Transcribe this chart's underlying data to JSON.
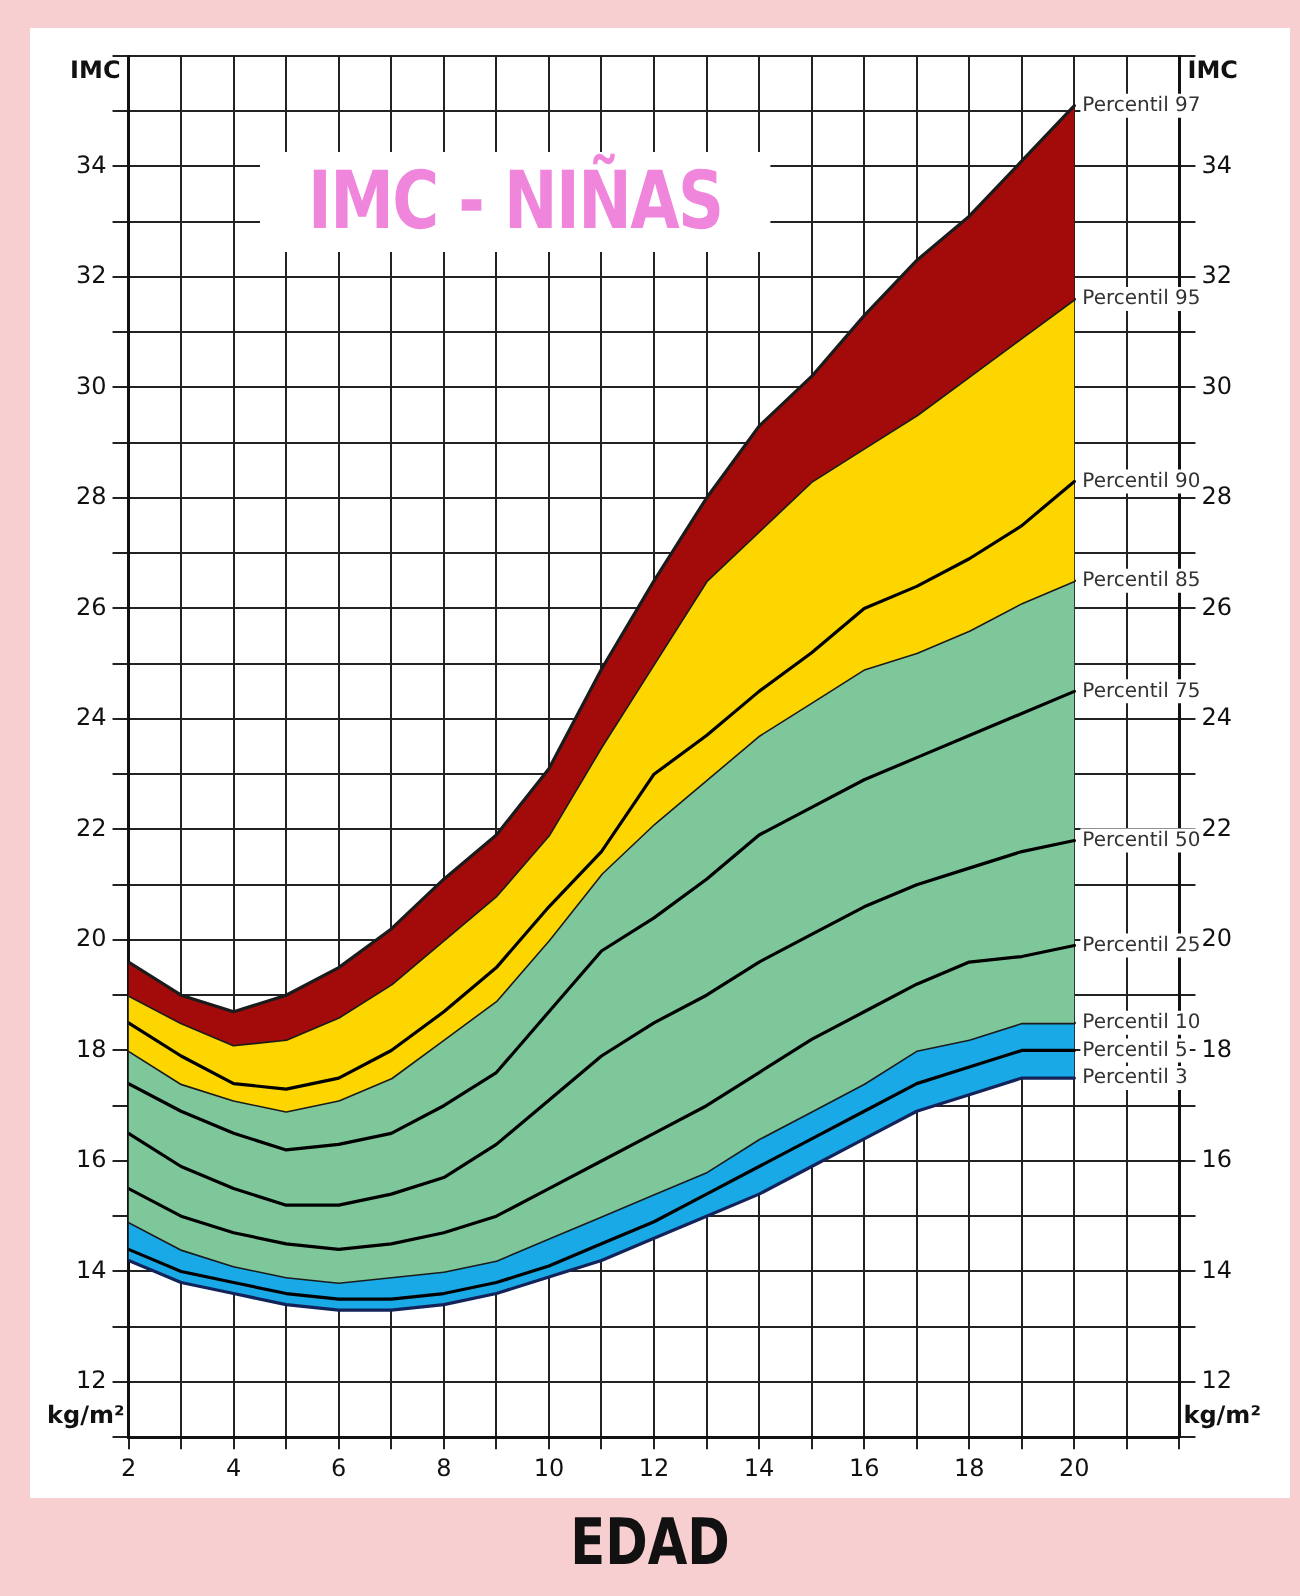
{
  "chart_data": {
    "type": "line",
    "title": "IMC - NIÑAS",
    "xlabel": "EDAD",
    "ylabel": "IMC",
    "y2label": "IMC",
    "annotations": [
      "kg/m²",
      "kg/m²"
    ],
    "x": [
      2,
      3,
      4,
      5,
      6,
      7,
      8,
      9,
      10,
      11,
      12,
      13,
      14,
      15,
      16,
      17,
      18,
      19,
      20
    ],
    "xlim": [
      2,
      22
    ],
    "xticks": [
      2,
      {
        "value": 3,
        "label": null
      },
      4,
      {
        "value": 5,
        "label": null
      },
      6,
      {
        "value": 7,
        "label": null
      },
      8,
      {
        "value": 9,
        "label": null
      },
      10,
      {
        "value": 11,
        "label": null
      },
      12,
      {
        "value": 13,
        "label": null
      },
      14,
      {
        "value": 15,
        "label": null
      },
      16,
      {
        "value": 17,
        "label": null
      },
      18,
      {
        "value": 19,
        "label": null
      },
      20,
      {
        "value": 21,
        "label": null
      },
      {
        "value": 22,
        "label": null
      }
    ],
    "ylim": [
      11,
      36
    ],
    "yticks": [
      {
        "value": 11,
        "label": null
      },
      12,
      {
        "value": 13,
        "label": null
      },
      14,
      {
        "value": 15,
        "label": null
      },
      16,
      {
        "value": 17,
        "label": null
      },
      18,
      {
        "value": 19,
        "label": null
      },
      20,
      {
        "value": 21,
        "label": null
      },
      22,
      {
        "value": 23,
        "label": null
      },
      24,
      {
        "value": 25,
        "label": null
      },
      26,
      {
        "value": 27,
        "label": null
      },
      28,
      {
        "value": 29,
        "label": null
      },
      30,
      {
        "value": 31,
        "label": null
      },
      32,
      {
        "value": 33,
        "label": null
      },
      34,
      {
        "value": 35,
        "label": null
      },
      {
        "value": 36,
        "label": null
      }
    ],
    "y2lim": [
      11,
      36
    ],
    "y2ticks": [
      {
        "value": 11,
        "label": null
      },
      12,
      {
        "value": 13,
        "label": null
      },
      14,
      {
        "value": 15,
        "label": null
      },
      16,
      {
        "value": 17,
        "label": null
      },
      18,
      {
        "value": 19,
        "label": null
      },
      20,
      {
        "value": 21,
        "label": null
      },
      22,
      {
        "value": 23,
        "label": null
      },
      24,
      {
        "value": 25,
        "label": null
      },
      26,
      {
        "value": 27,
        "label": null
      },
      28,
      {
        "value": 29,
        "label": null
      },
      30,
      {
        "value": 31,
        "label": null
      },
      32,
      {
        "value": 33,
        "label": null
      },
      34,
      {
        "value": 35,
        "label": null
      },
      {
        "value": 36,
        "label": null
      }
    ],
    "grid": true,
    "legend": false,
    "marker": "none",
    "line_style": "solid",
    "series": [
      {
        "name": "Percentil 97",
        "type": "area",
        "color": "#a30a0a",
        "values": [
          19.6,
          19.0,
          18.7,
          19.0,
          19.5,
          20.2,
          21.1,
          21.9,
          23.1,
          24.9,
          26.5,
          28.0,
          29.3,
          30.2,
          31.3,
          32.3,
          33.1,
          34.1,
          35.1
        ]
      },
      {
        "name": "Percentil 95",
        "type": "area",
        "color": "#fdd600",
        "values": [
          19.0,
          18.5,
          18.1,
          18.2,
          18.6,
          19.2,
          20.0,
          20.8,
          21.9,
          23.5,
          25.0,
          26.5,
          27.4,
          28.3,
          28.9,
          29.5,
          30.2,
          30.9,
          31.6
        ]
      },
      {
        "name": "Percentil 90",
        "color": "#000000",
        "values": [
          18.5,
          17.9,
          17.4,
          17.3,
          17.5,
          18.0,
          18.7,
          19.5,
          20.6,
          21.6,
          23.0,
          23.7,
          24.5,
          25.2,
          26.0,
          26.4,
          26.9,
          27.5,
          28.3
        ]
      },
      {
        "name": "Percentil 85",
        "type": "area",
        "color": "#7ec79b",
        "values": [
          18.0,
          17.4,
          17.1,
          16.9,
          17.1,
          17.5,
          18.2,
          18.9,
          20.0,
          21.2,
          22.1,
          22.9,
          23.7,
          24.3,
          24.9,
          25.2,
          25.6,
          26.1,
          26.5
        ]
      },
      {
        "name": "Percentil 75",
        "color": "#000000",
        "values": [
          17.4,
          16.9,
          16.5,
          16.2,
          16.3,
          16.5,
          17.0,
          17.6,
          18.7,
          19.8,
          20.4,
          21.1,
          21.9,
          22.4,
          22.9,
          23.3,
          23.7,
          24.1,
          24.5
        ]
      },
      {
        "name": "Percentil 50",
        "color": "#000000",
        "values": [
          16.5,
          15.9,
          15.5,
          15.2,
          15.2,
          15.4,
          15.7,
          16.3,
          17.1,
          17.9,
          18.5,
          19.0,
          19.6,
          20.1,
          20.6,
          21.0,
          21.3,
          21.6,
          21.8
        ]
      },
      {
        "name": "Percentil 25",
        "color": "#000000",
        "values": [
          15.5,
          15.0,
          14.7,
          14.5,
          14.4,
          14.5,
          14.7,
          15.0,
          15.5,
          16.0,
          16.5,
          17.0,
          17.6,
          18.2,
          18.7,
          19.2,
          19.6,
          19.7,
          19.9
        ]
      },
      {
        "name": "Percentil 10",
        "type": "area",
        "color": "#19a9e6",
        "values": [
          14.9,
          14.4,
          14.1,
          13.9,
          13.8,
          13.9,
          14.0,
          14.2,
          14.6,
          15.0,
          15.4,
          15.8,
          16.4,
          16.9,
          17.4,
          18.0,
          18.2,
          18.5,
          18.5
        ]
      },
      {
        "name": "Percentil 5",
        "color": "#000000",
        "values": [
          14.4,
          14.0,
          13.8,
          13.6,
          13.5,
          13.5,
          13.6,
          13.8,
          14.1,
          14.5,
          14.9,
          15.4,
          15.9,
          16.4,
          16.9,
          17.4,
          17.7,
          18.0,
          18.0
        ]
      },
      {
        "name": "Percentil 3",
        "color": "#13235a",
        "values": [
          14.2,
          13.8,
          13.6,
          13.4,
          13.3,
          13.3,
          13.4,
          13.6,
          13.9,
          14.2,
          14.6,
          15.0,
          15.4,
          15.9,
          16.4,
          16.9,
          17.2,
          17.5,
          17.5
        ]
      }
    ]
  }
}
